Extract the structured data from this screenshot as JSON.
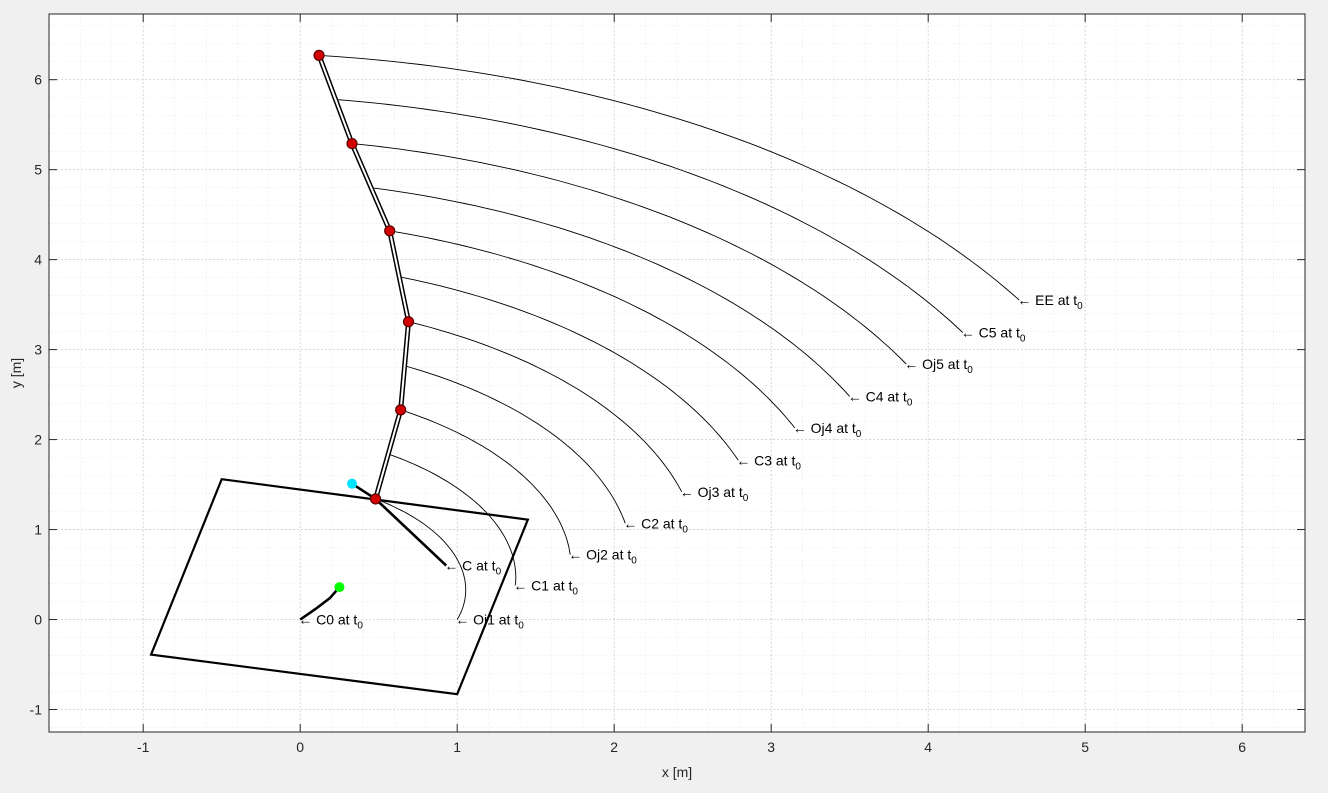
{
  "chart_data": {
    "type": "line",
    "title": "",
    "xlabel": "x [m]",
    "ylabel": "y [m]",
    "xlim": [
      -1.6,
      6.4
    ],
    "ylim": [
      -1.25,
      6.73
    ],
    "xticks": [
      "-1",
      "0",
      "1",
      "2",
      "3",
      "4",
      "5",
      "6"
    ],
    "yticks": [
      "-1",
      "0",
      "1",
      "2",
      "3",
      "4",
      "5",
      "6"
    ],
    "grid": "major and minor, dotted",
    "colors": {
      "trajectory": "#000000",
      "joint_marker": "#d40000",
      "cyan_marker": "#00e5ff",
      "green_marker": "#00ff00",
      "axes_bg": "#ffffff",
      "figure_bg": "#f0f0f0"
    },
    "base_rectangle": [
      [
        -0.5,
        1.56
      ],
      [
        1.45,
        1.11
      ],
      [
        1.0,
        -0.83
      ],
      [
        -0.95,
        -0.39
      ]
    ],
    "arm": [
      [
        0.48,
        1.34
      ],
      [
        0.64,
        2.33
      ],
      [
        0.69,
        3.31
      ],
      [
        0.57,
        4.32
      ],
      [
        0.33,
        5.29
      ],
      [
        0.12,
        6.27
      ]
    ],
    "arm_midpoints": [
      [
        0.56,
        1.84
      ],
      [
        0.665,
        2.82
      ],
      [
        0.63,
        3.81
      ],
      [
        0.45,
        4.8
      ],
      [
        0.225,
        5.78
      ]
    ],
    "joint_markers": [
      [
        0.48,
        1.34
      ],
      [
        0.64,
        2.33
      ],
      [
        0.69,
        3.31
      ],
      [
        0.57,
        4.32
      ],
      [
        0.33,
        5.29
      ],
      [
        0.12,
        6.27
      ]
    ],
    "cyan_marker": [
      0.33,
      1.51
    ],
    "green_marker": [
      0.25,
      0.36
    ],
    "c_segment": [
      [
        0.48,
        1.34
      ],
      [
        0.93,
        0.6
      ]
    ],
    "c_stub": [
      [
        0.33,
        1.51
      ],
      [
        0.48,
        1.34
      ]
    ],
    "c0_curve": [
      [
        0.0,
        0.0
      ],
      [
        0.1,
        0.12
      ],
      [
        0.19,
        0.24
      ],
      [
        0.25,
        0.36
      ]
    ],
    "paths": [
      {
        "label": "Oj1 at t",
        "sub": "0",
        "start": [
          0.48,
          1.34
        ],
        "end": [
          1.0,
          0.0
        ],
        "center": [
          0.0,
          0.0
        ]
      },
      {
        "label": "C1 at t",
        "sub": "0",
        "start": [
          0.56,
          1.84
        ],
        "end": [
          1.37,
          0.38
        ],
        "center": [
          0.0,
          0.0
        ]
      },
      {
        "label": "Oj2 at t",
        "sub": "0",
        "start": [
          0.64,
          2.33
        ],
        "end": [
          1.72,
          0.72
        ],
        "center": [
          0.0,
          0.0
        ]
      },
      {
        "label": "C2 at t",
        "sub": "0",
        "start": [
          0.665,
          2.82
        ],
        "end": [
          2.07,
          1.07
        ],
        "center": [
          0.0,
          0.0
        ]
      },
      {
        "label": "Oj3 at t",
        "sub": "0",
        "start": [
          0.69,
          3.31
        ],
        "end": [
          2.43,
          1.42
        ],
        "center": [
          0.0,
          0.0
        ]
      },
      {
        "label": "C3 at t",
        "sub": "0",
        "start": [
          0.63,
          3.81
        ],
        "end": [
          2.79,
          1.77
        ],
        "center": [
          0.0,
          0.0
        ]
      },
      {
        "label": "Oj4 at t",
        "sub": "0",
        "start": [
          0.57,
          4.32
        ],
        "end": [
          3.15,
          2.13
        ],
        "center": [
          0.0,
          0.0
        ]
      },
      {
        "label": "C4 at t",
        "sub": "0",
        "start": [
          0.45,
          4.8
        ],
        "end": [
          3.5,
          2.48
        ],
        "center": [
          0.0,
          0.0
        ]
      },
      {
        "label": "Oj5 at t",
        "sub": "0",
        "start": [
          0.33,
          5.29
        ],
        "end": [
          3.86,
          2.84
        ],
        "center": [
          0.0,
          0.0
        ]
      },
      {
        "label": "C5 at t",
        "sub": "0",
        "start": [
          0.225,
          5.78
        ],
        "end": [
          4.22,
          3.19
        ],
        "center": [
          0.0,
          0.0
        ]
      },
      {
        "label": "EE at t",
        "sub": "0",
        "start": [
          0.12,
          6.27
        ],
        "end": [
          4.58,
          3.55
        ],
        "center": [
          0.0,
          0.0
        ]
      }
    ],
    "c_annotation": {
      "label": "C at t",
      "sub": "0",
      "at": [
        0.93,
        0.6
      ]
    },
    "c0_annotation": {
      "label": "C0 at t",
      "sub": "0",
      "at": [
        0.0,
        0.0
      ]
    }
  }
}
